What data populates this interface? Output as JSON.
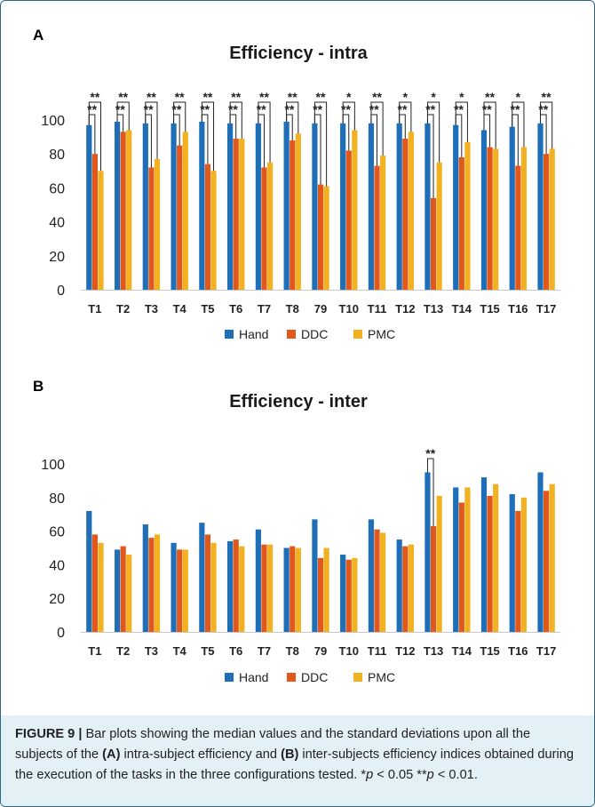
{
  "panel_a_letter": "A",
  "panel_b_letter": "B",
  "chart_data": [
    {
      "type": "bar",
      "title": "Efficiency - intra",
      "categories": [
        "T1",
        "T2",
        "T3",
        "T4",
        "T5",
        "T6",
        "T7",
        "T8",
        "79",
        "T10",
        "T11",
        "T12",
        "T13",
        "T14",
        "T15",
        "T16",
        "T17"
      ],
      "ylim": [
        0,
        100
      ],
      "yticks": [
        "0",
        "20",
        "40",
        "60",
        "80",
        "100"
      ],
      "grid": false,
      "legend_position": "bottom-center",
      "series": [
        {
          "name": "Hand",
          "color": "#1f6fb8",
          "values": [
            97,
            99,
            98,
            98,
            99,
            98,
            98,
            99,
            98,
            98,
            98,
            98,
            98,
            97,
            94,
            96,
            98
          ]
        },
        {
          "name": "DDC",
          "color": "#e0581c",
          "values": [
            80,
            93,
            72,
            85,
            74,
            89,
            72,
            88,
            62,
            82,
            73,
            89,
            54,
            78,
            84,
            73,
            80
          ]
        },
        {
          "name": "PMC",
          "color": "#f2b120",
          "values": [
            70,
            94,
            77,
            93,
            70,
            89,
            75,
            92,
            61,
            94,
            79,
            93,
            75,
            87,
            83,
            84,
            83
          ]
        }
      ],
      "annotations": [
        {
          "index": 0,
          "outer": "**",
          "inner": "**"
        },
        {
          "index": 1,
          "outer": "**",
          "inner": "**"
        },
        {
          "index": 2,
          "outer": "**",
          "inner": "**"
        },
        {
          "index": 3,
          "outer": "**",
          "inner": "**"
        },
        {
          "index": 4,
          "outer": "**",
          "inner": "**"
        },
        {
          "index": 5,
          "outer": "**",
          "inner": "**"
        },
        {
          "index": 6,
          "outer": "**",
          "inner": "**"
        },
        {
          "index": 7,
          "outer": "**",
          "inner": "**"
        },
        {
          "index": 8,
          "outer": "**",
          "inner": "**"
        },
        {
          "index": 9,
          "outer": "*",
          "inner": "**"
        },
        {
          "index": 10,
          "outer": "**",
          "inner": "**"
        },
        {
          "index": 11,
          "outer": "*",
          "inner": "**"
        },
        {
          "index": 12,
          "outer": "*",
          "inner": "**"
        },
        {
          "index": 13,
          "outer": "*",
          "inner": "**"
        },
        {
          "index": 14,
          "outer": "**",
          "inner": "**"
        },
        {
          "index": 15,
          "outer": "*",
          "inner": "**"
        },
        {
          "index": 16,
          "outer": "**",
          "inner": "**"
        }
      ]
    },
    {
      "type": "bar",
      "title": "Efficiency - inter",
      "categories": [
        "T1",
        "T2",
        "T3",
        "T4",
        "T5",
        "T6",
        "T7",
        "T8",
        "79",
        "T10",
        "T11",
        "T12",
        "T13",
        "T14",
        "T15",
        "T16",
        "T17"
      ],
      "ylim": [
        0,
        100
      ],
      "yticks": [
        "0",
        "20",
        "40",
        "60",
        "80",
        "100"
      ],
      "grid": false,
      "legend_position": "bottom-center",
      "series": [
        {
          "name": "Hand",
          "color": "#1f6fb8",
          "values": [
            72,
            49,
            64,
            53,
            65,
            54,
            61,
            50,
            67,
            46,
            67,
            55,
            95,
            86,
            92,
            82,
            95
          ]
        },
        {
          "name": "DDC",
          "color": "#e0581c",
          "values": [
            58,
            51,
            56,
            49,
            58,
            55,
            52,
            51,
            44,
            43,
            61,
            51,
            63,
            77,
            81,
            72,
            84
          ]
        },
        {
          "name": "PMC",
          "color": "#f2b120",
          "values": [
            53,
            46,
            58,
            49,
            53,
            51,
            52,
            50,
            50,
            44,
            59,
            52,
            81,
            86,
            88,
            80,
            88
          ]
        }
      ],
      "annotations": [
        {
          "index": 12,
          "outer": "**"
        }
      ]
    }
  ],
  "caption": {
    "label": "FIGURE 9 |",
    "text1": " Bar plots showing the median values and the standard deviations upon all the subjects of the ",
    "a": "(A)",
    "text2": " intra-subject efficiency and ",
    "b": "(B)",
    "text3": " inter-subjects efficiency indices obtained during the execution of the tasks in the three configurations tested. *",
    "p1": "p",
    "text4": " < 0.05 **",
    "p2": "p",
    "text5": " < 0.01."
  }
}
